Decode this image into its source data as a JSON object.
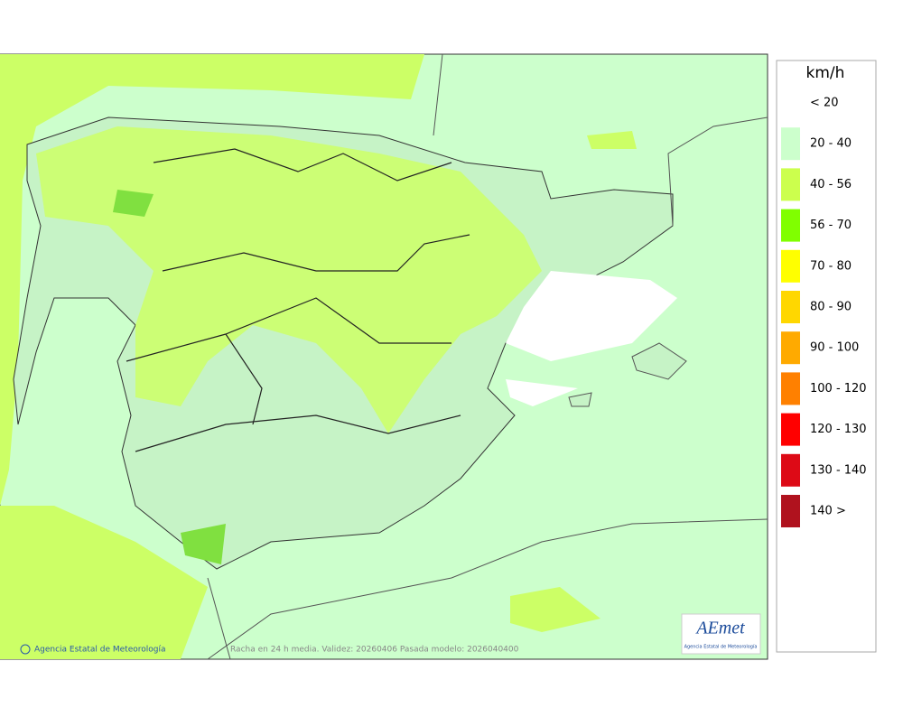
{
  "map": {
    "footer_left": "Agencia Estatal de Meteorología",
    "footer_center": "Racha en 24 h media. Validez: 20260406 Pasada modelo: 2026040400",
    "logo": {
      "text": "AEmet",
      "subtitle": "Agencia Estatal de Meteorología"
    }
  },
  "legend": {
    "title": "km/h",
    "items": [
      {
        "label": "< 20"
      },
      {
        "label": "20 - 40",
        "color": "#ccffcc"
      },
      {
        "label": "40 - 56",
        "color": "#ccff4d"
      },
      {
        "label": "56 - 70",
        "color": "#80ff00"
      },
      {
        "label": "70 - 80",
        "color": "#ffff00"
      },
      {
        "label": "80 - 90",
        "color": "#ffd700"
      },
      {
        "label": "90 - 100",
        "color": "#ffaa00"
      },
      {
        "label": "100 - 120",
        "color": "#ff8000"
      },
      {
        "label": "120 - 130",
        "color": "#ff0000"
      },
      {
        "label": "130 - 140",
        "color": "#dd0a16"
      },
      {
        "label": "140 >",
        "color": "#b0121e"
      }
    ]
  }
}
